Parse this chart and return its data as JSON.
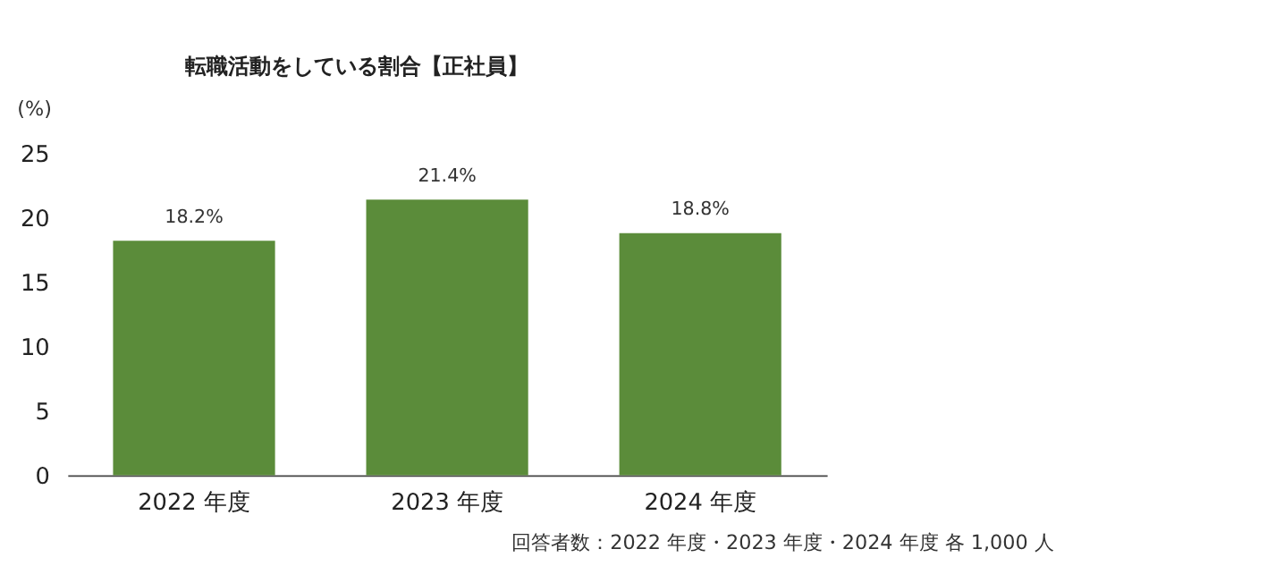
{
  "chart_data": {
    "type": "bar",
    "title": "転職活動をしている割合【正社員】",
    "ylabel": "(%)",
    "categories": [
      "2022 年度",
      "2023 年度",
      "2024 年度"
    ],
    "values": [
      18.2,
      21.4,
      18.8
    ],
    "color": "#5b8c3a",
    "value_labels": [
      "18.2%",
      "21.4%",
      "18.8%"
    ],
    "ylim": [
      0,
      25
    ],
    "yticks": [
      0,
      5,
      10,
      15,
      20,
      25
    ],
    "grid": false,
    "annotations": [
      "回答者数：2022 年度・2023 年度・2024 年度 各 1,000 人"
    ]
  }
}
